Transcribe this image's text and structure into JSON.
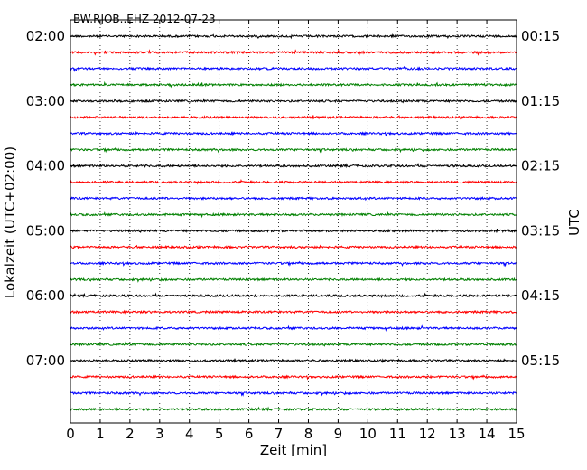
{
  "chart_data": {
    "type": "line",
    "title": "BW.RJOB..EHZ 2012-07-23",
    "xlabel": "Zeit  [min]",
    "ylabel_left": "Lokalzeit (UTC+02:00)",
    "ylabel_right": "UTC",
    "xlim": [
      0,
      15
    ],
    "x_ticks": [
      "0",
      "1",
      "2",
      "3",
      "4",
      "5",
      "6",
      "7",
      "8",
      "9",
      "10",
      "11",
      "12",
      "13",
      "14",
      "15"
    ],
    "grid": "vertical dotted",
    "num_traces": 24,
    "trace_colors": [
      "#000000",
      "#ff0000",
      "#0000ff",
      "#008000"
    ],
    "left_tick_labels": [
      "02:00",
      "03:00",
      "04:00",
      "05:00",
      "06:00",
      "07:00"
    ],
    "right_tick_labels": [
      "00:15",
      "01:15",
      "02:15",
      "03:15",
      "04:15",
      "05:15"
    ]
  }
}
